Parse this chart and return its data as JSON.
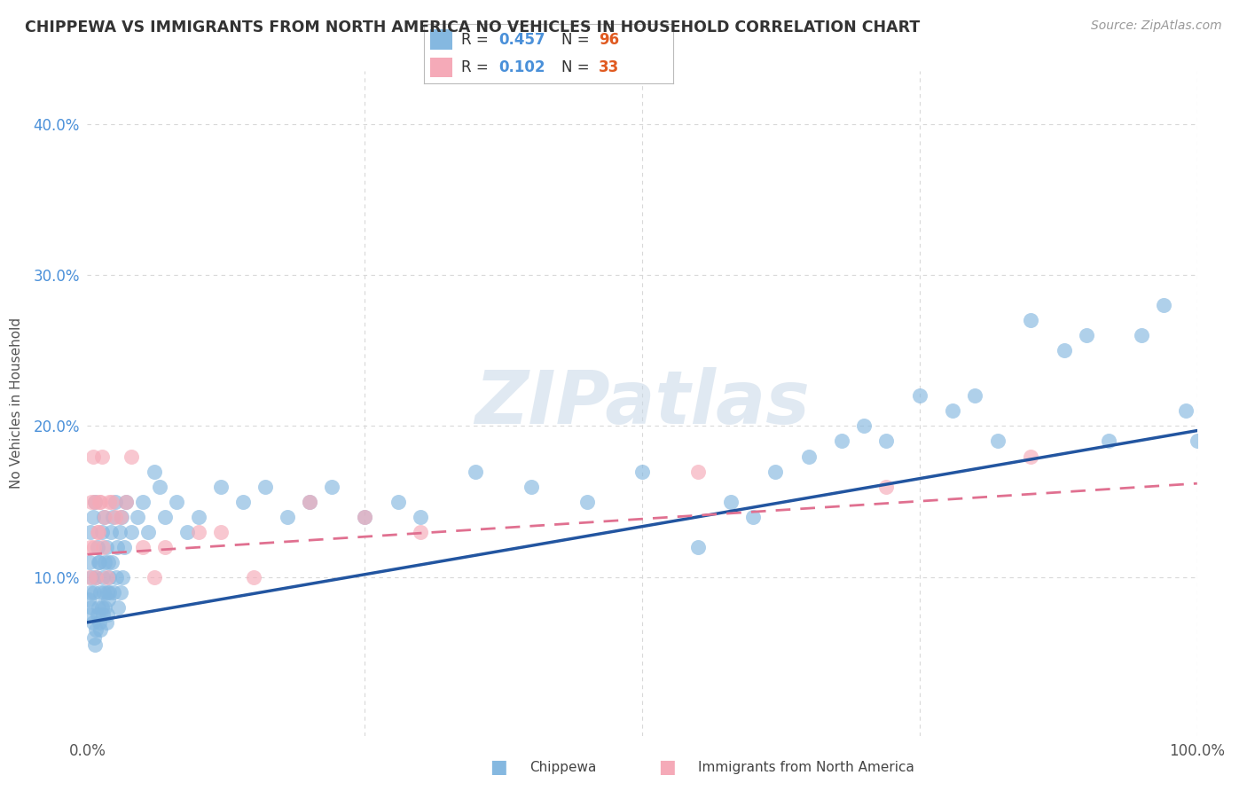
{
  "title": "CHIPPEWA VS IMMIGRANTS FROM NORTH AMERICA NO VEHICLES IN HOUSEHOLD CORRELATION CHART",
  "source": "Source: ZipAtlas.com",
  "ylabel": "No Vehicles in Household",
  "xlim": [
    0.0,
    1.0
  ],
  "ylim": [
    -0.005,
    0.435
  ],
  "xtick_vals": [
    0.0,
    0.25,
    0.5,
    0.75,
    1.0
  ],
  "xtick_labels": [
    "0.0%",
    "",
    "",
    "",
    "100.0%"
  ],
  "ytick_vals": [
    0.0,
    0.1,
    0.2,
    0.3,
    0.4
  ],
  "ytick_labels": [
    "",
    "10.0%",
    "20.0%",
    "30.0%",
    "40.0%"
  ],
  "chippewa_R": 0.457,
  "chippewa_N": 96,
  "immigrants_R": 0.102,
  "immigrants_N": 33,
  "chippewa_color": "#85b8e0",
  "immigrants_color": "#f5aab8",
  "chippewa_line_color": "#2255a0",
  "immigrants_line_color": "#e07090",
  "watermark_text": "ZIPatlas",
  "background_color": "#ffffff",
  "grid_color": "#d8d8d8",
  "title_color": "#333333",
  "source_color": "#999999",
  "ylabel_color": "#555555",
  "ytick_color": "#4a90d9",
  "xtick_color": "#555555",
  "legend_R_color": "#4a90d9",
  "legend_N_color": "#e05a20",
  "chippewa_x": [
    0.001,
    0.002,
    0.003,
    0.004,
    0.005,
    0.006,
    0.007,
    0.008,
    0.009,
    0.01,
    0.011,
    0.012,
    0.013,
    0.014,
    0.015,
    0.016,
    0.017,
    0.018,
    0.019,
    0.02,
    0.003,
    0.005,
    0.007,
    0.009,
    0.011,
    0.013,
    0.015,
    0.017,
    0.019,
    0.021,
    0.023,
    0.025,
    0.027,
    0.029,
    0.031,
    0.033,
    0.035,
    0.04,
    0.045,
    0.05,
    0.055,
    0.06,
    0.065,
    0.07,
    0.08,
    0.09,
    0.1,
    0.12,
    0.14,
    0.16,
    0.18,
    0.2,
    0.22,
    0.25,
    0.28,
    0.3,
    0.35,
    0.4,
    0.45,
    0.5,
    0.55,
    0.58,
    0.6,
    0.62,
    0.65,
    0.68,
    0.7,
    0.72,
    0.75,
    0.78,
    0.8,
    0.82,
    0.85,
    0.88,
    0.9,
    0.92,
    0.95,
    0.97,
    0.99,
    1.0,
    0.002,
    0.004,
    0.006,
    0.008,
    0.01,
    0.012,
    0.014,
    0.016,
    0.018,
    0.02,
    0.022,
    0.024,
    0.026,
    0.028,
    0.03,
    0.032
  ],
  "chippewa_y": [
    0.085,
    0.075,
    0.09,
    0.08,
    0.07,
    0.06,
    0.055,
    0.065,
    0.075,
    0.08,
    0.07,
    0.065,
    0.08,
    0.075,
    0.09,
    0.08,
    0.07,
    0.075,
    0.085,
    0.09,
    0.13,
    0.14,
    0.15,
    0.12,
    0.11,
    0.13,
    0.14,
    0.12,
    0.11,
    0.13,
    0.14,
    0.15,
    0.12,
    0.13,
    0.14,
    0.12,
    0.15,
    0.13,
    0.14,
    0.15,
    0.13,
    0.17,
    0.16,
    0.14,
    0.15,
    0.13,
    0.14,
    0.16,
    0.15,
    0.16,
    0.14,
    0.15,
    0.16,
    0.14,
    0.15,
    0.14,
    0.17,
    0.16,
    0.15,
    0.17,
    0.12,
    0.15,
    0.14,
    0.17,
    0.18,
    0.19,
    0.2,
    0.19,
    0.22,
    0.21,
    0.22,
    0.19,
    0.27,
    0.25,
    0.26,
    0.19,
    0.26,
    0.28,
    0.21,
    0.19,
    0.11,
    0.1,
    0.09,
    0.1,
    0.11,
    0.09,
    0.1,
    0.11,
    0.09,
    0.1,
    0.11,
    0.09,
    0.1,
    0.08,
    0.09,
    0.1
  ],
  "immigrants_x": [
    0.002,
    0.004,
    0.006,
    0.008,
    0.01,
    0.012,
    0.014,
    0.016,
    0.018,
    0.02,
    0.003,
    0.005,
    0.007,
    0.009,
    0.011,
    0.013,
    0.022,
    0.025,
    0.03,
    0.035,
    0.04,
    0.05,
    0.06,
    0.07,
    0.1,
    0.12,
    0.15,
    0.2,
    0.25,
    0.3,
    0.55,
    0.72,
    0.85
  ],
  "immigrants_y": [
    0.1,
    0.15,
    0.12,
    0.1,
    0.13,
    0.15,
    0.12,
    0.14,
    0.1,
    0.15,
    0.12,
    0.18,
    0.15,
    0.13,
    0.15,
    0.18,
    0.15,
    0.14,
    0.14,
    0.15,
    0.18,
    0.12,
    0.1,
    0.12,
    0.13,
    0.13,
    0.1,
    0.15,
    0.14,
    0.13,
    0.17,
    0.16,
    0.18
  ],
  "chip_line_x0": 0.0,
  "chip_line_y0": 0.07,
  "chip_line_x1": 1.0,
  "chip_line_y1": 0.197,
  "imm_line_x0": 0.0,
  "imm_line_y0": 0.115,
  "imm_line_x1": 1.0,
  "imm_line_y1": 0.162
}
